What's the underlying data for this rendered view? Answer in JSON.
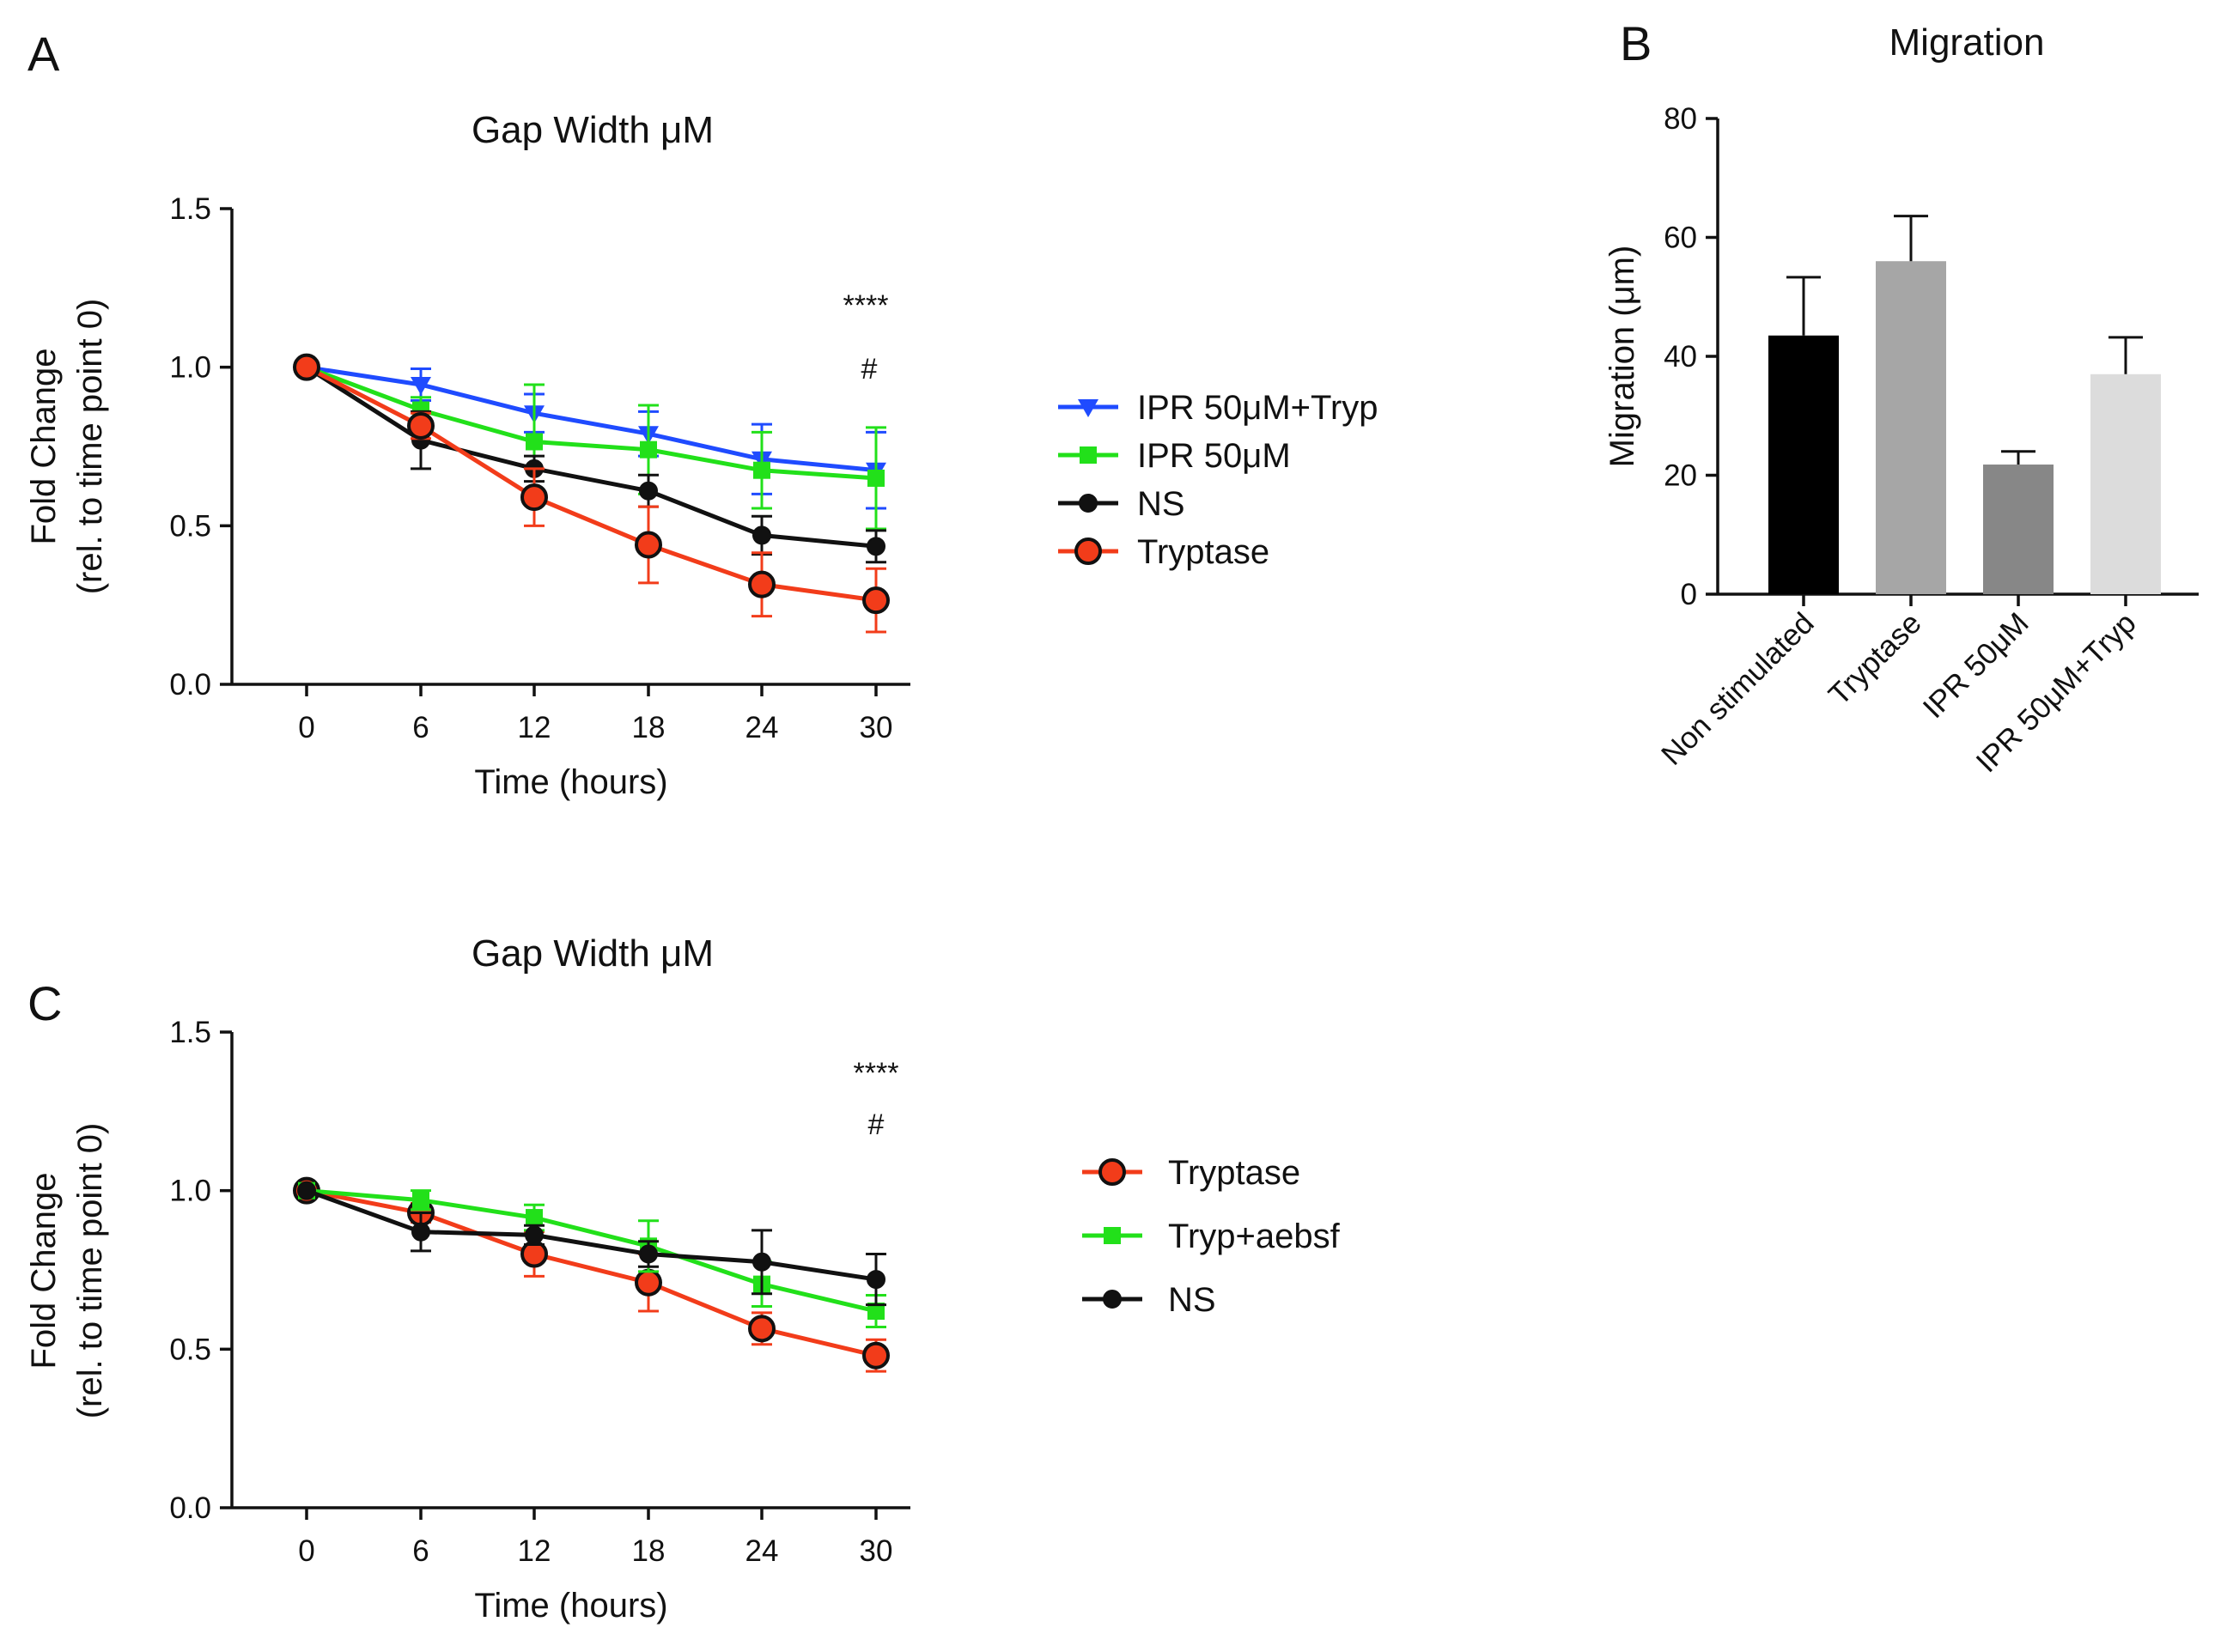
{
  "chart_data": [
    {
      "id": "A",
      "panel_label": "A",
      "type": "line",
      "title": "Gap Width μM",
      "xlabel": "Time (hours)",
      "ylabel": [
        "Fold Change",
        "(rel. to time point 0)"
      ],
      "x": [
        0,
        6,
        12,
        18,
        24,
        30
      ],
      "x_ticks": [
        "0",
        "6",
        "12",
        "18",
        "24",
        "30"
      ],
      "y_ticks": [
        "0.0",
        "0.5",
        "1.0",
        "1.5"
      ],
      "ylim": [
        0,
        1.5
      ],
      "legend_position": "right",
      "annotations": [
        "****",
        "#"
      ],
      "series": [
        {
          "name": "IPR 50μM+Tryp",
          "color": "#1f4bff",
          "marker": "triangle-down",
          "values": [
            1.0,
            0.945,
            0.855,
            0.79,
            0.71,
            0.675
          ],
          "errors": [
            0.0,
            0.05,
            0.06,
            0.07,
            0.11,
            0.12
          ]
        },
        {
          "name": "IPR 50μM",
          "color": "#22e01a",
          "marker": "square",
          "values": [
            1.0,
            0.865,
            0.765,
            0.74,
            0.675,
            0.65
          ],
          "errors": [
            0.0,
            0.04,
            0.18,
            0.14,
            0.12,
            0.16
          ]
        },
        {
          "name": "NS",
          "color": "#111111",
          "marker": "circle",
          "values": [
            1.0,
            0.77,
            0.68,
            0.61,
            0.47,
            0.435
          ],
          "errors": [
            0.0,
            0.09,
            0.04,
            0.05,
            0.06,
            0.05
          ]
        },
        {
          "name": "Tryptase",
          "color": "#f23c1a",
          "marker": "circle-large",
          "values": [
            1.0,
            0.815,
            0.59,
            0.44,
            0.315,
            0.265
          ],
          "errors": [
            0.0,
            0.04,
            0.09,
            0.12,
            0.1,
            0.1
          ]
        }
      ]
    },
    {
      "id": "B",
      "panel_label": "B",
      "type": "bar",
      "title": "Migration",
      "xlabel": "",
      "ylabel": "Migration (μm)",
      "categories": [
        "Non stimulated",
        "Tryptase",
        "IPR 50μM",
        "IPR 50μM+Tryp"
      ],
      "values": [
        43.5,
        56.0,
        21.8,
        37.0
      ],
      "errors": [
        9.8,
        7.6,
        2.2,
        6.2
      ],
      "colors": [
        "#000000",
        "#a6a6a6",
        "#878787",
        "#dcdcdc"
      ],
      "y_ticks": [
        "0",
        "20",
        "40",
        "60",
        "80"
      ],
      "ylim": [
        0,
        80
      ]
    },
    {
      "id": "C",
      "panel_label": "C",
      "type": "line",
      "title": "Gap Width μM",
      "xlabel": "Time (hours)",
      "ylabel": [
        "Fold Change",
        "(rel. to time point 0)"
      ],
      "x": [
        0,
        6,
        12,
        18,
        24,
        30
      ],
      "x_ticks": [
        "0",
        "6",
        "12",
        "18",
        "24",
        "30"
      ],
      "y_ticks": [
        "0.0",
        "0.5",
        "1.0",
        "1.5"
      ],
      "ylim": [
        0,
        1.5
      ],
      "legend_position": "right",
      "annotations": [
        "****",
        "#"
      ],
      "series": [
        {
          "name": "Tryptase",
          "color": "#f23c1a",
          "marker": "circle-large",
          "values": [
            1.0,
            0.93,
            0.8,
            0.71,
            0.565,
            0.48
          ],
          "errors": [
            0.0,
            0.03,
            0.07,
            0.09,
            0.05,
            0.05
          ]
        },
        {
          "name": "Tryp+aebsf",
          "color": "#22e01a",
          "marker": "square",
          "values": [
            1.0,
            0.97,
            0.915,
            0.825,
            0.705,
            0.62
          ],
          "errors": [
            0.0,
            0.03,
            0.04,
            0.08,
            0.07,
            0.05
          ]
        },
        {
          "name": "NS",
          "color": "#111111",
          "marker": "circle",
          "values": [
            1.0,
            0.87,
            0.86,
            0.8,
            0.775,
            0.72
          ],
          "errors": [
            0.0,
            0.06,
            0.03,
            0.04,
            0.1,
            0.08
          ]
        }
      ]
    }
  ]
}
